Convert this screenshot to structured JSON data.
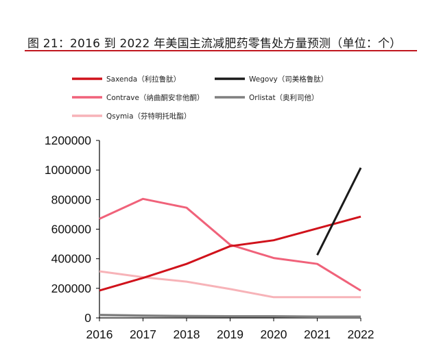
{
  "figure": {
    "caption": "图 21：2016 到 2022 年美国主流减肥药零售处方量预测（单位：个）",
    "accent_color": "#c0161e"
  },
  "chart_data": {
    "type": "line",
    "x": [
      "2016",
      "2017",
      "2018",
      "2019",
      "2020",
      "2021",
      "2022"
    ],
    "ylim": [
      0,
      1200000
    ],
    "yticks": [
      "0",
      "200000",
      "400000",
      "600000",
      "800000",
      "1000000",
      "1200000"
    ],
    "grid": false,
    "legend_position": "top",
    "series": [
      {
        "name": "Saxenda（利拉鲁肽）",
        "color": "#d0121b",
        "values": [
          185000,
          270000,
          365000,
          485000,
          525000,
          605000,
          685000
        ]
      },
      {
        "name": "Wegovy（司美格鲁肽）",
        "color": "#1a1a1a",
        "values": [
          null,
          null,
          null,
          null,
          null,
          425000,
          1015000
        ]
      },
      {
        "name": "Contrave（纳曲酮安非他酮）",
        "color": "#f0627a",
        "values": [
          670000,
          805000,
          745000,
          495000,
          405000,
          365000,
          185000
        ]
      },
      {
        "name": "Orlistat（奥利司他）",
        "color": "#7f7f7f",
        "values": [
          20000,
          15000,
          12000,
          10000,
          10000,
          8000,
          8000
        ]
      },
      {
        "name": "Qsymia（芬特明托吡酯）",
        "color": "#f7b3b8",
        "values": [
          315000,
          275000,
          245000,
          195000,
          140000,
          140000,
          140000
        ]
      }
    ]
  }
}
